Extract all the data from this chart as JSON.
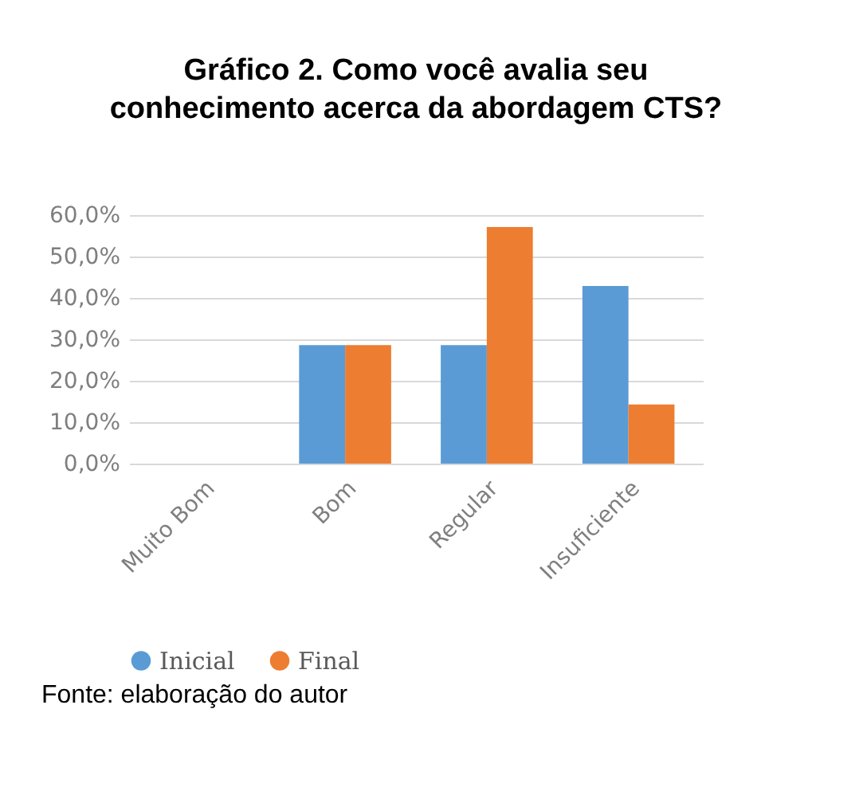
{
  "chart_data": {
    "type": "bar",
    "title": "Gráfico 2. Como você avalia seu conhecimento acerca da abordagem CTS?",
    "categories": [
      "Muito Bom",
      "Bom",
      "Regular",
      "Insuficiente"
    ],
    "series": [
      {
        "name": "Inicial",
        "color": "#5b9bd5",
        "values": [
          0,
          28.6,
          28.6,
          42.9
        ]
      },
      {
        "name": "Final",
        "color": "#ed7d31",
        "values": [
          0,
          28.6,
          57.1,
          14.3
        ]
      }
    ],
    "ylim": [
      0,
      60
    ],
    "yticks": [
      {
        "value": 0,
        "label": "0,0%"
      },
      {
        "value": 10,
        "label": "10,0%"
      },
      {
        "value": 20,
        "label": "20,0%"
      },
      {
        "value": 30,
        "label": "30,0%"
      },
      {
        "value": 40,
        "label": "40,0%"
      },
      {
        "value": 50,
        "label": "50,0%"
      },
      {
        "value": 60,
        "label": "60,0%"
      }
    ],
    "grid": "y",
    "legend": "bottom",
    "annotations": [
      "Fonte: elaboração do autor"
    ]
  }
}
